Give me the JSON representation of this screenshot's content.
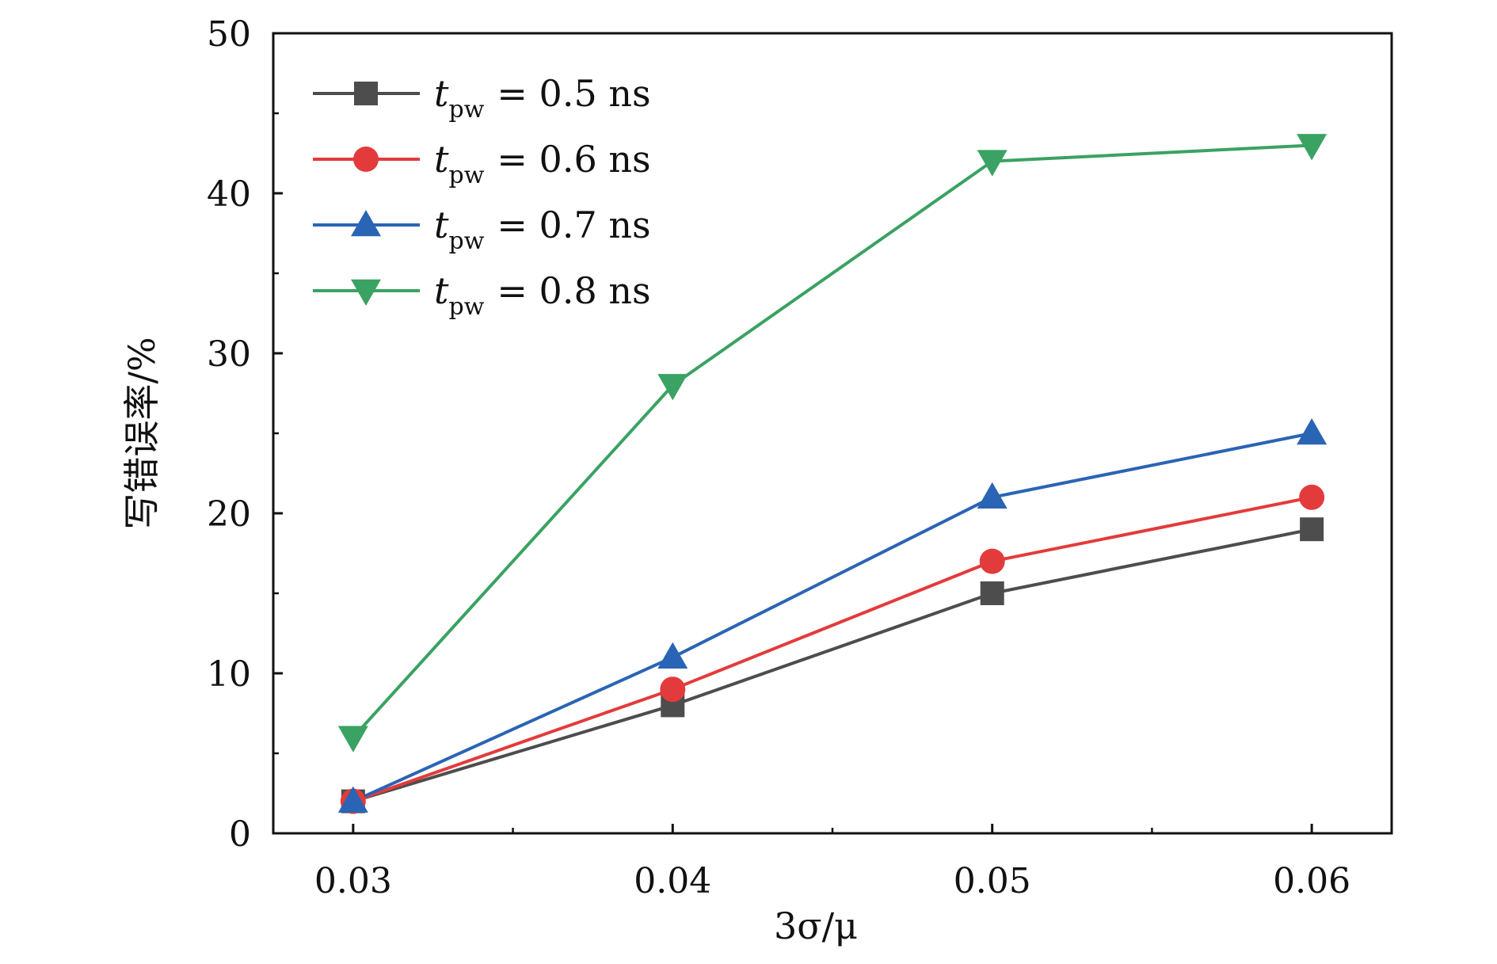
{
  "chart_data": {
    "type": "line",
    "x": [
      0.03,
      0.04,
      0.05,
      0.06
    ],
    "x_tick_labels": [
      "0.03",
      "0.04",
      "0.05",
      "0.06"
    ],
    "xlim": [
      0.0275,
      0.0625
    ],
    "ylim": [
      0,
      50
    ],
    "y_ticks": [
      0,
      10,
      20,
      30,
      40,
      50
    ],
    "y_tick_labels": [
      "0",
      "10",
      "20",
      "30",
      "40",
      "50"
    ],
    "xlabel": "3σ/μ",
    "ylabel": "写错误率/%",
    "grid": false,
    "legend_position": "top-left",
    "series": [
      {
        "name": "t_pw = 0.5 ns",
        "symbol": "t",
        "subscript": "pw",
        "value_text": "= 0.5 ns",
        "marker": "square",
        "color": "#4d4d4d",
        "values": [
          2,
          8,
          15,
          19
        ]
      },
      {
        "name": "t_pw = 0.6 ns",
        "symbol": "t",
        "subscript": "pw",
        "value_text": "= 0.6 ns",
        "marker": "circle",
        "color": "#e33b3b",
        "values": [
          2,
          9,
          17,
          21
        ]
      },
      {
        "name": "t_pw = 0.7 ns",
        "symbol": "t",
        "subscript": "pw",
        "value_text": "= 0.7 ns",
        "marker": "triangle-up",
        "color": "#2a64b4",
        "values": [
          2,
          11,
          21,
          25
        ]
      },
      {
        "name": "t_pw = 0.8 ns",
        "symbol": "t",
        "subscript": "pw",
        "value_text": "= 0.8 ns",
        "marker": "triangle-down",
        "color": "#3aa262",
        "values": [
          6,
          28,
          42,
          43
        ]
      }
    ]
  }
}
